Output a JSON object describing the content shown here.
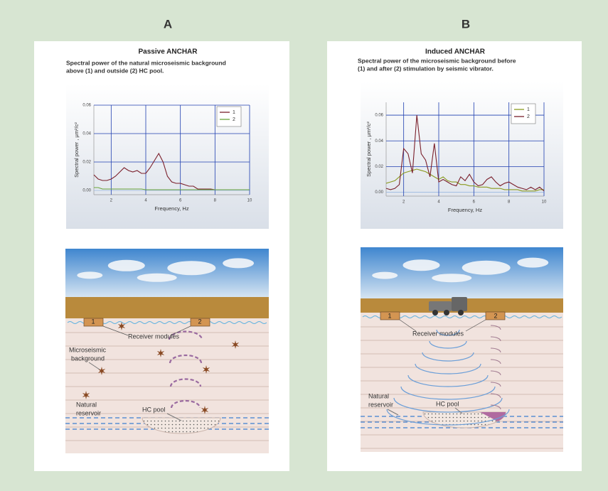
{
  "panels": [
    {
      "label": "A",
      "title": "Passive ANCHAR",
      "subtitle_lines": [
        "Spectral power of the natural microseismic background",
        "above (1) and outside (2) HC pool."
      ]
    },
    {
      "label": "B",
      "title": "Induced ANCHAR",
      "subtitle_lines": [
        "Spectral power of the microseismic background before",
        "(1) and after (2) stimulation by seismic vibrator."
      ]
    }
  ],
  "chart_data": [
    {
      "type": "line",
      "xlabel": "Frequency, Hz",
      "ylabel": "Spectral power , μm²/c²",
      "x": [
        1,
        1.25,
        1.5,
        1.75,
        2,
        2.25,
        2.5,
        2.75,
        3,
        3.25,
        3.5,
        3.75,
        4,
        4.25,
        4.5,
        4.75,
        5,
        5.25,
        5.5,
        5.75,
        6,
        6.25,
        6.5,
        6.75,
        7,
        7.25,
        7.5,
        7.75,
        8,
        8.25,
        8.5,
        8.75,
        9,
        9.25,
        9.5,
        9.75,
        10
      ],
      "series": [
        {
          "name": "1",
          "color": "#7a1f2b",
          "values": [
            0.011,
            0.008,
            0.007,
            0.007,
            0.008,
            0.01,
            0.013,
            0.016,
            0.014,
            0.013,
            0.014,
            0.012,
            0.012,
            0.016,
            0.021,
            0.026,
            0.02,
            0.01,
            0.006,
            0.005,
            0.005,
            0.004,
            0.003,
            0.003,
            0.001,
            0.001,
            0.001,
            0.001,
            0.0005,
            0.0005,
            0.0005,
            0.0005,
            0.0005,
            0.0005,
            0.0005,
            0.0005,
            0.0005
          ]
        },
        {
          "name": "2",
          "color": "#6aa53a",
          "values": [
            0.002,
            0.002,
            0.001,
            0.001,
            0.001,
            0.001,
            0.001,
            0.001,
            0.001,
            0.001,
            0.001,
            0.001,
            0.0005,
            0.0005,
            0.0005,
            0.0005,
            0.0005,
            0.0005,
            0.0005,
            0.0005,
            0.0005,
            0.0005,
            0.0005,
            0.0005,
            0.0005,
            0.0005,
            0.0005,
            0.0005,
            0.0005,
            0.0005,
            0.0005,
            0.0005,
            0.0005,
            0.0005,
            0.0005,
            0.0005,
            0.0005
          ]
        }
      ],
      "xlim": [
        1,
        10
      ],
      "ylim": [
        -0.003,
        0.06
      ],
      "xticks": [
        2,
        4,
        6,
        8,
        10
      ],
      "yticks": [
        {
          "value": 0,
          "label": "0.00"
        },
        0.02,
        0.04,
        0.06
      ],
      "grid": true,
      "legend": "upper right"
    },
    {
      "type": "line",
      "xlabel": "Frequency, Hz",
      "ylabel": "Spectral power , μm²/c²",
      "x": [
        1,
        1.25,
        1.5,
        1.75,
        2,
        2.25,
        2.5,
        2.75,
        3,
        3.25,
        3.5,
        3.75,
        4,
        4.25,
        4.5,
        4.75,
        5,
        5.25,
        5.5,
        5.75,
        6,
        6.25,
        6.5,
        6.75,
        7,
        7.25,
        7.5,
        7.75,
        8,
        8.25,
        8.5,
        8.75,
        9,
        9.25,
        9.5,
        9.75,
        10
      ],
      "series": [
        {
          "name": "1",
          "color": "#8a9a1e",
          "values": [
            0.007,
            0.008,
            0.009,
            0.012,
            0.015,
            0.016,
            0.017,
            0.018,
            0.017,
            0.016,
            0.014,
            0.012,
            0.01,
            0.012,
            0.009,
            0.008,
            0.008,
            0.006,
            0.006,
            0.005,
            0.005,
            0.004,
            0.004,
            0.004,
            0.003,
            0.003,
            0.003,
            0.002,
            0.002,
            0.002,
            0.002,
            0.001,
            0.001,
            0.001,
            0.001,
            0.002,
            0.002
          ]
        },
        {
          "name": "2",
          "color": "#7a1f2b",
          "values": [
            0.003,
            0.002,
            0.003,
            0.006,
            0.034,
            0.03,
            0.015,
            0.06,
            0.03,
            0.025,
            0.012,
            0.038,
            0.008,
            0.01,
            0.008,
            0.006,
            0.005,
            0.012,
            0.009,
            0.014,
            0.008,
            0.005,
            0.006,
            0.01,
            0.012,
            0.008,
            0.005,
            0.007,
            0.008,
            0.006,
            0.004,
            0.003,
            0.002,
            0.004,
            0.002,
            0.004,
            0.001
          ]
        }
      ],
      "xlim": [
        1,
        10
      ],
      "ylim": [
        -0.003,
        0.07
      ],
      "xticks": [
        2,
        4,
        6,
        8,
        10
      ],
      "yticks": [
        {
          "value": 0,
          "label": "0.00"
        },
        0.02,
        0.04,
        0.06
      ],
      "grid": true,
      "legend": "upper right"
    }
  ],
  "illustrations": [
    {
      "receiver_labels": [
        "1",
        "2"
      ],
      "receivers": "Receiver modules",
      "background_lines": [
        "Microseismic",
        "background"
      ],
      "reservoir_lines": [
        "Natural",
        "reservoir"
      ],
      "pool": "HC pool"
    },
    {
      "receiver_labels": [
        "1",
        "2"
      ],
      "receivers": "Receiver modules",
      "reservoir_lines": [
        "Natural",
        "reservoir"
      ],
      "pool": "HC pool"
    }
  ]
}
